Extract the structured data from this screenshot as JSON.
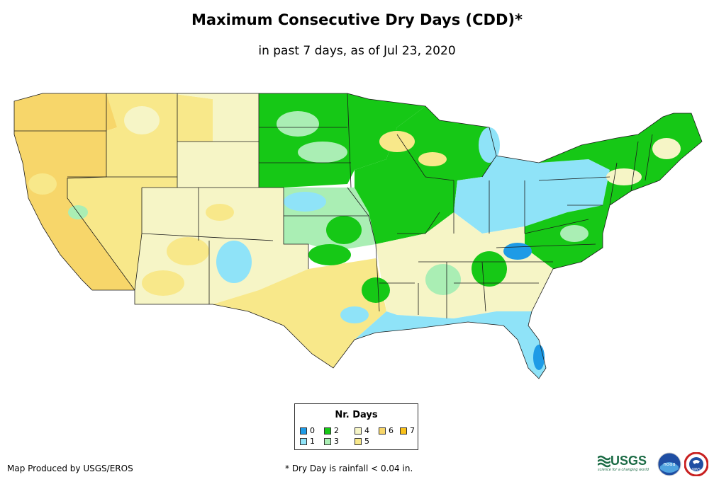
{
  "title": "Maximum Consecutive Dry Days (CDD)*",
  "subtitle": "in past 7 days, as of Jul 23, 2020",
  "legend": {
    "title": "Nr. Days",
    "items": [
      {
        "label": "0",
        "color": "#1e9be6"
      },
      {
        "label": "1",
        "color": "#8fe3f8"
      },
      {
        "label": "2",
        "color": "#16c816"
      },
      {
        "label": "3",
        "color": "#aaeeb4"
      },
      {
        "label": "4",
        "color": "#f6f5c6"
      },
      {
        "label": "5",
        "color": "#f8e88a"
      },
      {
        "label": "6",
        "color": "#f7d66a"
      },
      {
        "label": "7",
        "color": "#f8c01a"
      }
    ]
  },
  "credit": "Map Produced by USGS/EROS",
  "footnote": "* Dry Day is rainfall < 0.04 in.",
  "logos": {
    "usgs": "USGS",
    "usgs_tagline": "science for a changing world",
    "noaa": "noaa",
    "nws": "NWS"
  },
  "colors": {
    "state_border": "#1a1a1a"
  }
}
